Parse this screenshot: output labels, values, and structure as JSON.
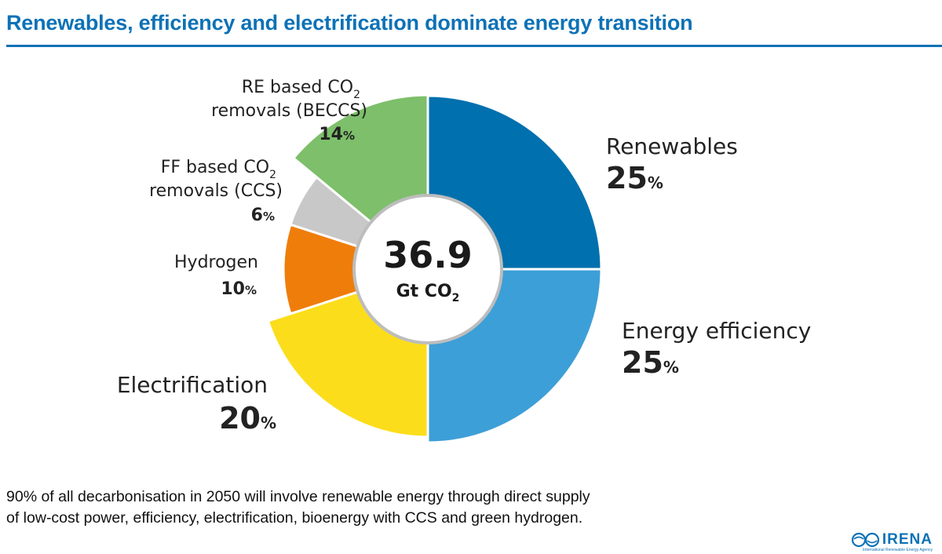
{
  "header": {
    "title": "Renewables, efficiency and electrification dominate energy transition"
  },
  "chart_data": {
    "type": "pie",
    "variant": "donut-with-exploded-segments",
    "title": "Renewables, efficiency and electrification dominate energy transition",
    "center": {
      "value": "36.9",
      "unit": "Gt CO",
      "unit_sub": "2"
    },
    "slices": [
      {
        "key": "renewables",
        "label_lines": [
          "Renewables"
        ],
        "value": 25,
        "pct_text": "25",
        "color": "#0070ae"
      },
      {
        "key": "efficiency",
        "label_lines": [
          "Energy efficiency"
        ],
        "value": 25,
        "pct_text": "25",
        "color": "#3d9fd7"
      },
      {
        "key": "electrification",
        "label_lines": [
          "Electrification"
        ],
        "value": 20,
        "pct_text": "20",
        "color": "#fcdd1c"
      },
      {
        "key": "hydrogen",
        "label_lines": [
          "Hydrogen"
        ],
        "value": 10,
        "pct_text": "10",
        "color": "#ef7d0a"
      },
      {
        "key": "ccs",
        "label_lines": [
          "FF based CO",
          "removals (CCS)"
        ],
        "label_sub": "2",
        "value": 6,
        "pct_text": "6",
        "color": "#c8c8c8"
      },
      {
        "key": "beccs",
        "label_lines": [
          "RE based CO",
          "removals (BECCS)"
        ],
        "label_sub": "2",
        "value": 14,
        "pct_text": "14",
        "color": "#7dbf6a"
      }
    ],
    "percent_sign": "%"
  },
  "footnote": {
    "lines": [
      "90% of all decarbonisation in 2050 will involve renewable energy through direct supply",
      "of low-cost power, efficiency, electrification, bioenergy with CCS and green hydrogen."
    ]
  },
  "logo": {
    "text": "IRENA",
    "subtitle": "International Renewable Energy Agency",
    "color": "#0d72b6"
  }
}
